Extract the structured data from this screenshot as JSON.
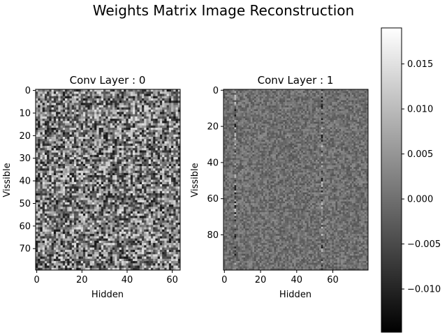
{
  "figure": {
    "title": "Weights Matrix Image Reconstruction"
  },
  "chart_data": [
    {
      "type": "heatmap",
      "title": "Conv Layer : 0",
      "xlabel": "Hidden",
      "ylabel": "Vissible",
      "cols": 64,
      "rows": 80,
      "xticks": [
        0,
        20,
        40,
        60
      ],
      "yticks": [
        0,
        10,
        20,
        30,
        40,
        50,
        60,
        70
      ],
      "value_range": [
        -0.012,
        0.015
      ],
      "colormap": "gray"
    },
    {
      "type": "heatmap",
      "title": "Conv Layer : 1",
      "xlabel": "Hidden",
      "ylabel": "Vissible",
      "cols": 80,
      "rows": 100,
      "xticks": [
        0,
        20,
        40,
        60
      ],
      "yticks": [
        0,
        20,
        40,
        60,
        80
      ],
      "value_range": [
        -0.004,
        0.004
      ],
      "colormap": "gray",
      "highlight_columns": [
        6,
        54
      ]
    }
  ],
  "colorbar": {
    "min": -0.0148,
    "max": 0.019,
    "ticks": [
      -0.01,
      -0.005,
      0.0,
      0.005,
      0.01,
      0.015
    ],
    "tick_labels": [
      "−0.010",
      "−0.005",
      "0.000",
      "0.005",
      "0.010",
      "0.015"
    ]
  }
}
